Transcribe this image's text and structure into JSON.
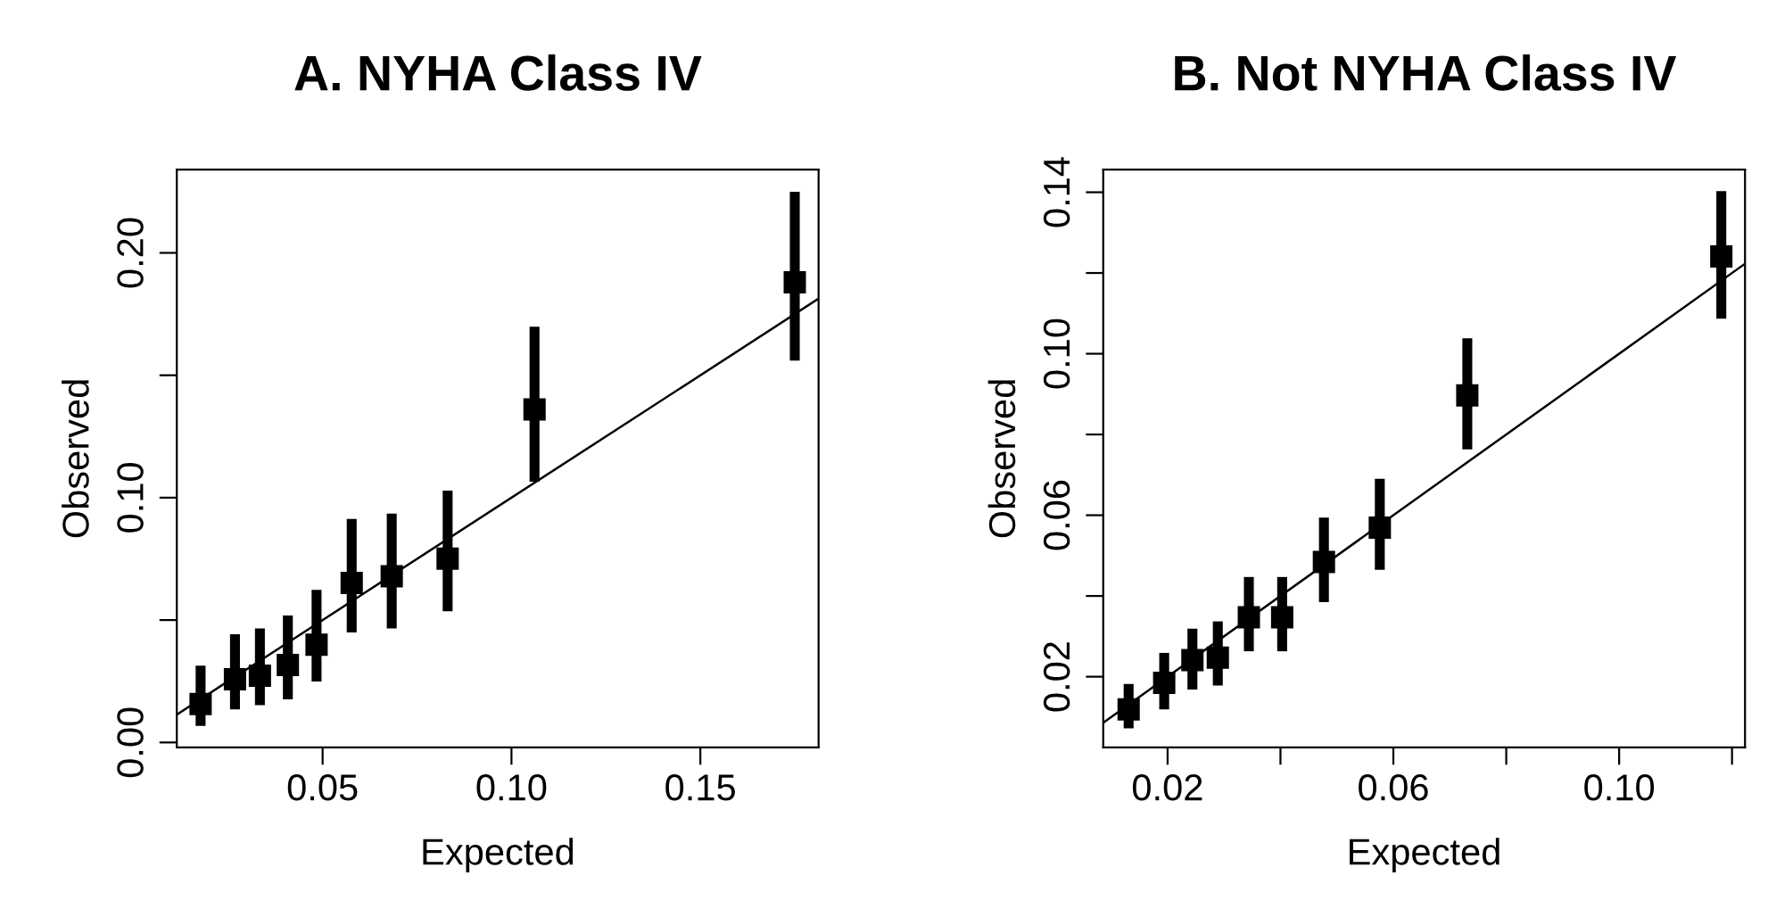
{
  "chart_data": [
    {
      "type": "scatter",
      "title": "A. NYHA Class IV",
      "xlabel": "Expected",
      "ylabel": "Observed",
      "marker": "square",
      "grid": false,
      "legend": false,
      "xlim": [
        0.0114,
        0.1813
      ],
      "ylim": [
        -0.002,
        0.234
      ],
      "xticks": [
        0.05,
        {
          "value": 0.1,
          "label": "0.10"
        },
        0.15
      ],
      "yticks": [
        {
          "value": 0.0,
          "label": "0.00"
        },
        {
          "value": 0.05,
          "label": null
        },
        {
          "value": 0.1,
          "label": "0.10"
        },
        {
          "value": 0.15,
          "label": null
        },
        {
          "value": 0.2,
          "label": "0.20"
        }
      ],
      "series": [
        {
          "color": "#000000",
          "x": [
            0.0177,
            0.0268,
            0.0334,
            0.0408,
            0.0484,
            0.0577,
            0.0683,
            0.0831,
            0.1061,
            0.175
          ],
          "values": [
            0.0157,
            0.0258,
            0.0273,
            0.0316,
            0.0399,
            0.0652,
            0.0679,
            0.0751,
            0.136,
            0.188
          ],
          "errors": [
            [
              0.0068,
              0.0314
            ],
            [
              0.0135,
              0.0442
            ],
            [
              0.0152,
              0.0466
            ],
            [
              0.0176,
              0.0519
            ],
            [
              0.0249,
              0.0623
            ],
            [
              0.0449,
              0.0913
            ],
            [
              0.0466,
              0.0935
            ],
            [
              0.0536,
              0.1029
            ],
            [
              0.1065,
              0.1698
            ],
            [
              0.156,
              0.225
            ]
          ]
        },
        {
          "type": "line",
          "marker": "none",
          "color": "#000000",
          "x": [
            0.0114,
            0.1813
          ],
          "values": [
            0.0114,
            0.1813
          ]
        }
      ]
    },
    {
      "type": "scatter",
      "title": "B. Not NYHA Class IV",
      "xlabel": "Expected",
      "ylabel": "Observed",
      "marker": "square",
      "grid": false,
      "legend": false,
      "xlim": [
        0.0086,
        0.1223
      ],
      "ylim": [
        0.0025,
        0.1456
      ],
      "xticks": [
        0.02,
        {
          "value": 0.04,
          "label": null
        },
        0.06,
        {
          "value": 0.08,
          "label": null
        },
        {
          "value": 0.1,
          "label": "0.10"
        },
        {
          "value": 0.12,
          "label": null
        }
      ],
      "yticks": [
        0.02,
        {
          "value": 0.04,
          "label": null
        },
        0.06,
        {
          "value": 0.08,
          "label": null
        },
        {
          "value": 0.1,
          "label": "0.10"
        },
        {
          "value": 0.12,
          "label": null
        },
        0.14
      ],
      "series": [
        {
          "color": "#000000",
          "x": [
            0.0131,
            0.0194,
            0.0244,
            0.0289,
            0.0344,
            0.0403,
            0.0477,
            0.0576,
            0.0731,
            0.1181
          ],
          "values": [
            0.0119,
            0.0185,
            0.0241,
            0.0247,
            0.0347,
            0.0347,
            0.0484,
            0.0569,
            0.0897,
            0.1241
          ],
          "errors": [
            [
              0.0072,
              0.0182
            ],
            [
              0.0119,
              0.0259
            ],
            [
              0.0168,
              0.0319
            ],
            [
              0.0178,
              0.0337
            ],
            [
              0.0263,
              0.0447
            ],
            [
              0.0263,
              0.0447
            ],
            [
              0.0385,
              0.0594
            ],
            [
              0.0465,
              0.069
            ],
            [
              0.0763,
              0.1038
            ],
            [
              0.1087,
              0.1403
            ]
          ]
        },
        {
          "type": "line",
          "marker": "none",
          "color": "#000000",
          "x": [
            0.0086,
            0.1223
          ],
          "values": [
            0.0086,
            0.1223
          ]
        }
      ]
    }
  ]
}
